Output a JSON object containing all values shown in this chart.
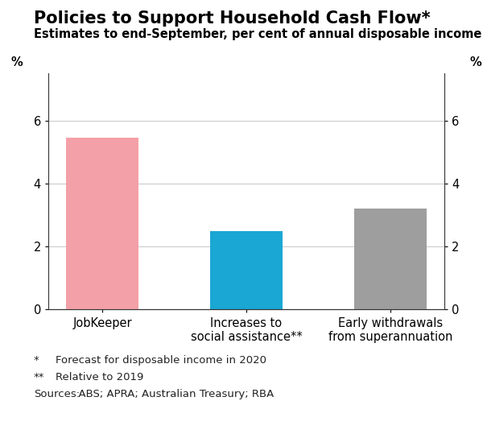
{
  "title": "Policies to Support Household Cash Flow*",
  "subtitle": "Estimates to end-September, per cent of annual disposable income",
  "categories": [
    "JobKeeper",
    "Increases to\nsocial assistance**",
    "Early withdrawals\nfrom superannuation"
  ],
  "values": [
    5.45,
    2.5,
    3.2
  ],
  "bar_colors": [
    "#f4a0a8",
    "#1aa7d4",
    "#9e9e9e"
  ],
  "ylim": [
    0,
    7.5
  ],
  "yticks": [
    0,
    2,
    4,
    6
  ],
  "ylabel_left": "%",
  "ylabel_right": "%",
  "footnote1_bullet": "*",
  "footnote1_text": "Forecast for disposable income in 2020",
  "footnote2_bullet": "**",
  "footnote2_text": "Relative to 2019",
  "footnote3_label": "Sources:",
  "footnote3_text": "  ABS; APRA; Australian Treasury; RBA",
  "background_color": "#ffffff",
  "title_fontsize": 15,
  "subtitle_fontsize": 10.5,
  "tick_fontsize": 10.5,
  "footnote_fontsize": 9.5
}
